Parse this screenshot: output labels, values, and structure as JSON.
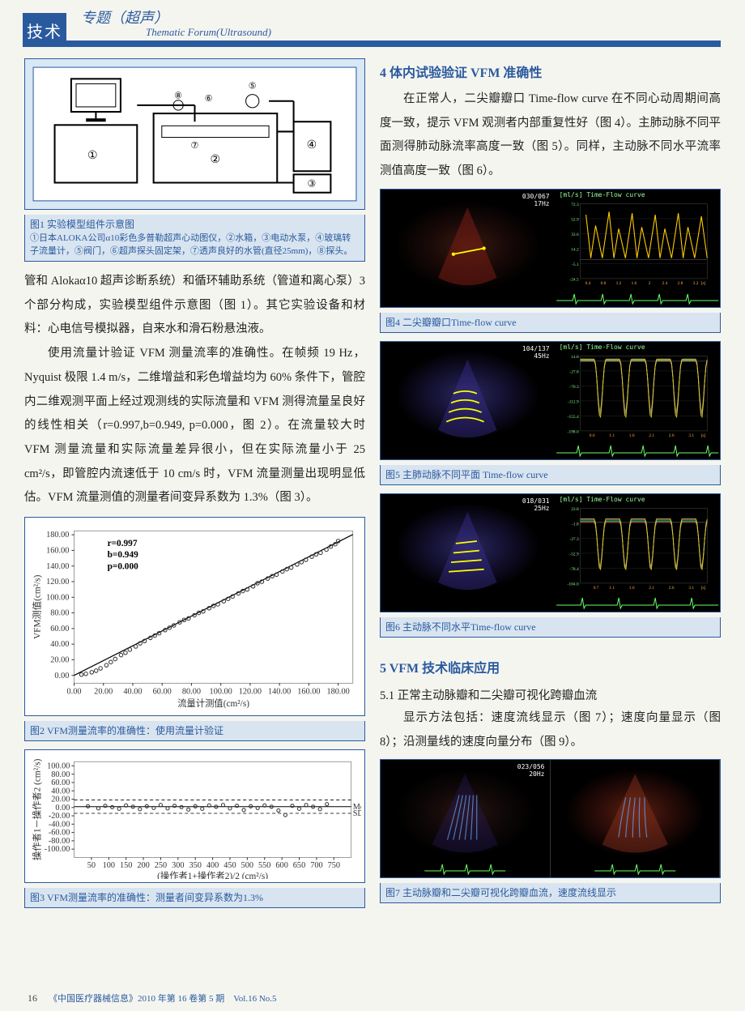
{
  "header": {
    "tab": "技术",
    "title_cn": "专题（超声）",
    "title_en": "Thematic Forum(Ultrasound)"
  },
  "fig1": {
    "caption_line1": "图1 实验模型组件示意图",
    "caption_line2": "①日本ALOKA公司α10彩色多普勒超声心动图仪，②水箱，③电动水泵，④玻璃转子流量计，⑤阀门，⑥超声探头固定架，⑦透声良好的水管(直径25mm)，⑧探头。",
    "labels": [
      "①",
      "②",
      "③",
      "④",
      "⑤",
      "⑥",
      "⑦",
      "⑧"
    ]
  },
  "para1": "管和 Alokaα10 超声诊断系统）和循环辅助系统（管道和离心泵）3 个部分构成，实验模型组件示意图（图 1）。其它实验设备和材料：心电信号模拟器，自来水和滑石粉悬浊液。",
  "para2": "使用流量计验证 VFM 测量流率的准确性。在帧频 19 Hz，Nyquist 极限 1.4 m/s，二维增益和彩色增益均为 60% 条件下，管腔内二维观测平面上经过观测线的实际流量和 VFM 测得流量呈良好的线性相关（r=0.997,b=0.949, p=0.000，图 2）。在流量较大时 VFM 测量流量和实际流量差异很小，但在实际流量小于 25 cm²/s，即管腔内流速低于 10 cm/s 时，VFM 流量测量出现明显低估。VFM 流量测值的测量者间变异系数为 1.3%（图 3）。",
  "fig2": {
    "caption": "图2 VFM测量流率的准确性：使用流量计验证",
    "type": "scatter",
    "xlabel": "流量计测值(cm²/s)",
    "ylabel": "VFM测值(cm²/s)",
    "xlim": [
      0,
      190
    ],
    "ylim": [
      -10,
      185
    ],
    "xticks": [
      0,
      20,
      40,
      60,
      80,
      100,
      120,
      140,
      160,
      180
    ],
    "yticks": [
      0,
      20,
      40,
      60,
      80,
      100,
      120,
      140,
      160,
      180
    ],
    "stats": {
      "r": "r=0.997",
      "b": "b=0.949",
      "p": "p=0.000"
    },
    "line": {
      "slope": 0.949,
      "intercept": 0
    },
    "points": [
      [
        5,
        1
      ],
      [
        8,
        2
      ],
      [
        12,
        4
      ],
      [
        15,
        6
      ],
      [
        18,
        9
      ],
      [
        22,
        13
      ],
      [
        25,
        17
      ],
      [
        28,
        21
      ],
      [
        32,
        26
      ],
      [
        35,
        29
      ],
      [
        38,
        33
      ],
      [
        42,
        37
      ],
      [
        45,
        41
      ],
      [
        48,
        44
      ],
      [
        52,
        48
      ],
      [
        55,
        51
      ],
      [
        58,
        54
      ],
      [
        62,
        58
      ],
      [
        65,
        61
      ],
      [
        68,
        64
      ],
      [
        72,
        68
      ],
      [
        75,
        71
      ],
      [
        78,
        73
      ],
      [
        82,
        77
      ],
      [
        85,
        80
      ],
      [
        88,
        82
      ],
      [
        92,
        86
      ],
      [
        95,
        89
      ],
      [
        98,
        91
      ],
      [
        102,
        95
      ],
      [
        105,
        98
      ],
      [
        108,
        101
      ],
      [
        112,
        105
      ],
      [
        115,
        108
      ],
      [
        118,
        110
      ],
      [
        122,
        114
      ],
      [
        125,
        118
      ],
      [
        128,
        120
      ],
      [
        132,
        124
      ],
      [
        135,
        127
      ],
      [
        138,
        129
      ],
      [
        142,
        133
      ],
      [
        145,
        136
      ],
      [
        148,
        138
      ],
      [
        152,
        142
      ],
      [
        155,
        145
      ],
      [
        158,
        148
      ],
      [
        162,
        152
      ],
      [
        165,
        155
      ],
      [
        168,
        157
      ],
      [
        172,
        161
      ],
      [
        175,
        165
      ],
      [
        178,
        168
      ],
      [
        180,
        172
      ]
    ],
    "marker_color": "#333",
    "line_color": "#000",
    "bg": "#ffffff"
  },
  "fig3": {
    "caption": "图3 VFM测量流率的准确性：测量者间变异系数为1.3%",
    "type": "bland-altman",
    "xlabel": "(操作者1+操作者2)/2 (cm²/s)",
    "ylabel": "操作者1－操作者2 (cm²/s)",
    "xlim": [
      0,
      800
    ],
    "ylim": [
      -120,
      110
    ],
    "xticks": [
      50,
      100,
      150,
      200,
      250,
      300,
      350,
      400,
      450,
      500,
      550,
      600,
      650,
      700,
      750
    ],
    "yticks": [
      -100,
      -80,
      -60,
      -40,
      -20,
      0,
      20,
      40,
      60,
      80,
      100
    ],
    "mean_line": 2,
    "upper_line": 18,
    "lower_line": -14,
    "points": [
      [
        40,
        3
      ],
      [
        70,
        -2
      ],
      [
        90,
        4
      ],
      [
        110,
        1
      ],
      [
        130,
        -3
      ],
      [
        150,
        5
      ],
      [
        170,
        2
      ],
      [
        190,
        -4
      ],
      [
        210,
        3
      ],
      [
        230,
        -1
      ],
      [
        250,
        6
      ],
      [
        270,
        -2
      ],
      [
        290,
        4
      ],
      [
        310,
        1
      ],
      [
        330,
        -5
      ],
      [
        350,
        3
      ],
      [
        370,
        -3
      ],
      [
        390,
        5
      ],
      [
        410,
        2
      ],
      [
        430,
        6
      ],
      [
        450,
        -2
      ],
      [
        470,
        4
      ],
      [
        490,
        -6
      ],
      [
        510,
        3
      ],
      [
        530,
        -1
      ],
      [
        550,
        5
      ],
      [
        570,
        2
      ],
      [
        590,
        -7
      ],
      [
        610,
        -18
      ],
      [
        630,
        4
      ],
      [
        650,
        -3
      ],
      [
        670,
        6
      ],
      [
        690,
        2
      ],
      [
        710,
        -4
      ],
      [
        730,
        8
      ]
    ],
    "marker_color": "#333",
    "bg": "#ffffff"
  },
  "sec4": {
    "title": "4 体内试验验证 VFM 准确性",
    "text": "在正常人，二尖瓣瓣口 Time-flow curve 在不同心动周期间高度一致，提示 VFM 观测者内部重复性好（图 4）。主肺动脉不同平面测得肺动脉流率高度一致（图 5）。同样，主动脉不同水平流率测值高度一致（图 6）。"
  },
  "fig4": {
    "caption": "图4 二尖瓣瓣口Time-flow curve",
    "info": "030/067\n17Hz",
    "tf_label": "[ml/s] Time-Flow curve",
    "curve_ylim": [
      -24.5,
      72.3
    ],
    "curve_xlim": [
      0.2,
      3.5
    ],
    "xticks": [
      0.4,
      0.8,
      1.2,
      1.6,
      2.0,
      2.4,
      2.8,
      3.2
    ],
    "peaks": [
      [
        0.35,
        58
      ],
      [
        0.6,
        44
      ],
      [
        0.95,
        62
      ],
      [
        1.2,
        40
      ],
      [
        1.55,
        60
      ],
      [
        1.8,
        42
      ],
      [
        2.15,
        58
      ],
      [
        2.4,
        40
      ],
      [
        2.75,
        60
      ],
      [
        3.0,
        42
      ],
      [
        3.35,
        56
      ]
    ],
    "curve_color": "#ffcc00"
  },
  "fig5": {
    "caption": "图5 主肺动脉不同平面 Time-flow curve",
    "info": "104/137\n45Hz",
    "tf_label": "[ml/s] Time-Flow curve",
    "curve_ylim": [
      -198,
      14.8
    ],
    "curve_xlim": [
      0.3,
      3.5
    ],
    "xticks": [
      0.6,
      1.1,
      1.6,
      2.1,
      2.6,
      3.1
    ],
    "curve_colors": [
      "#ff4444",
      "#44ff44",
      "#4488ff",
      "#ffcc00"
    ]
  },
  "fig6": {
    "caption": "图6 主动脉不同水平Time-flow curve",
    "info": "018/031\n25Hz",
    "tf_label": "[ml/s] Time-Flow curve",
    "curve_ylim": [
      -104,
      23.8
    ],
    "curve_xlim": [
      0.3,
      3.5
    ],
    "xticks": [
      0.7,
      1.1,
      1.6,
      2.1,
      2.6,
      3.1
    ],
    "curve_colors": [
      "#ff4444",
      "#44ff44",
      "#4488ff",
      "#ffcc00"
    ]
  },
  "sec5": {
    "title": "5 VFM 技术临床应用",
    "sub": "5.1 正常主动脉瓣和二尖瓣可视化跨瓣血流",
    "text": "显示方法包括：速度流线显示（图 7）；速度向量显示（图 8）；沿测量线的速度向量分布（图 9）。"
  },
  "fig7": {
    "caption": "图7 主动脉瓣和二尖瓣可视化跨瓣血流，速度流线显示",
    "info_left": "023/056\n20Hz"
  },
  "footer": {
    "page": "16",
    "text": "《中国医疗器械信息》2010 年第 16 卷第 5 期　Vol.16 No.5"
  }
}
